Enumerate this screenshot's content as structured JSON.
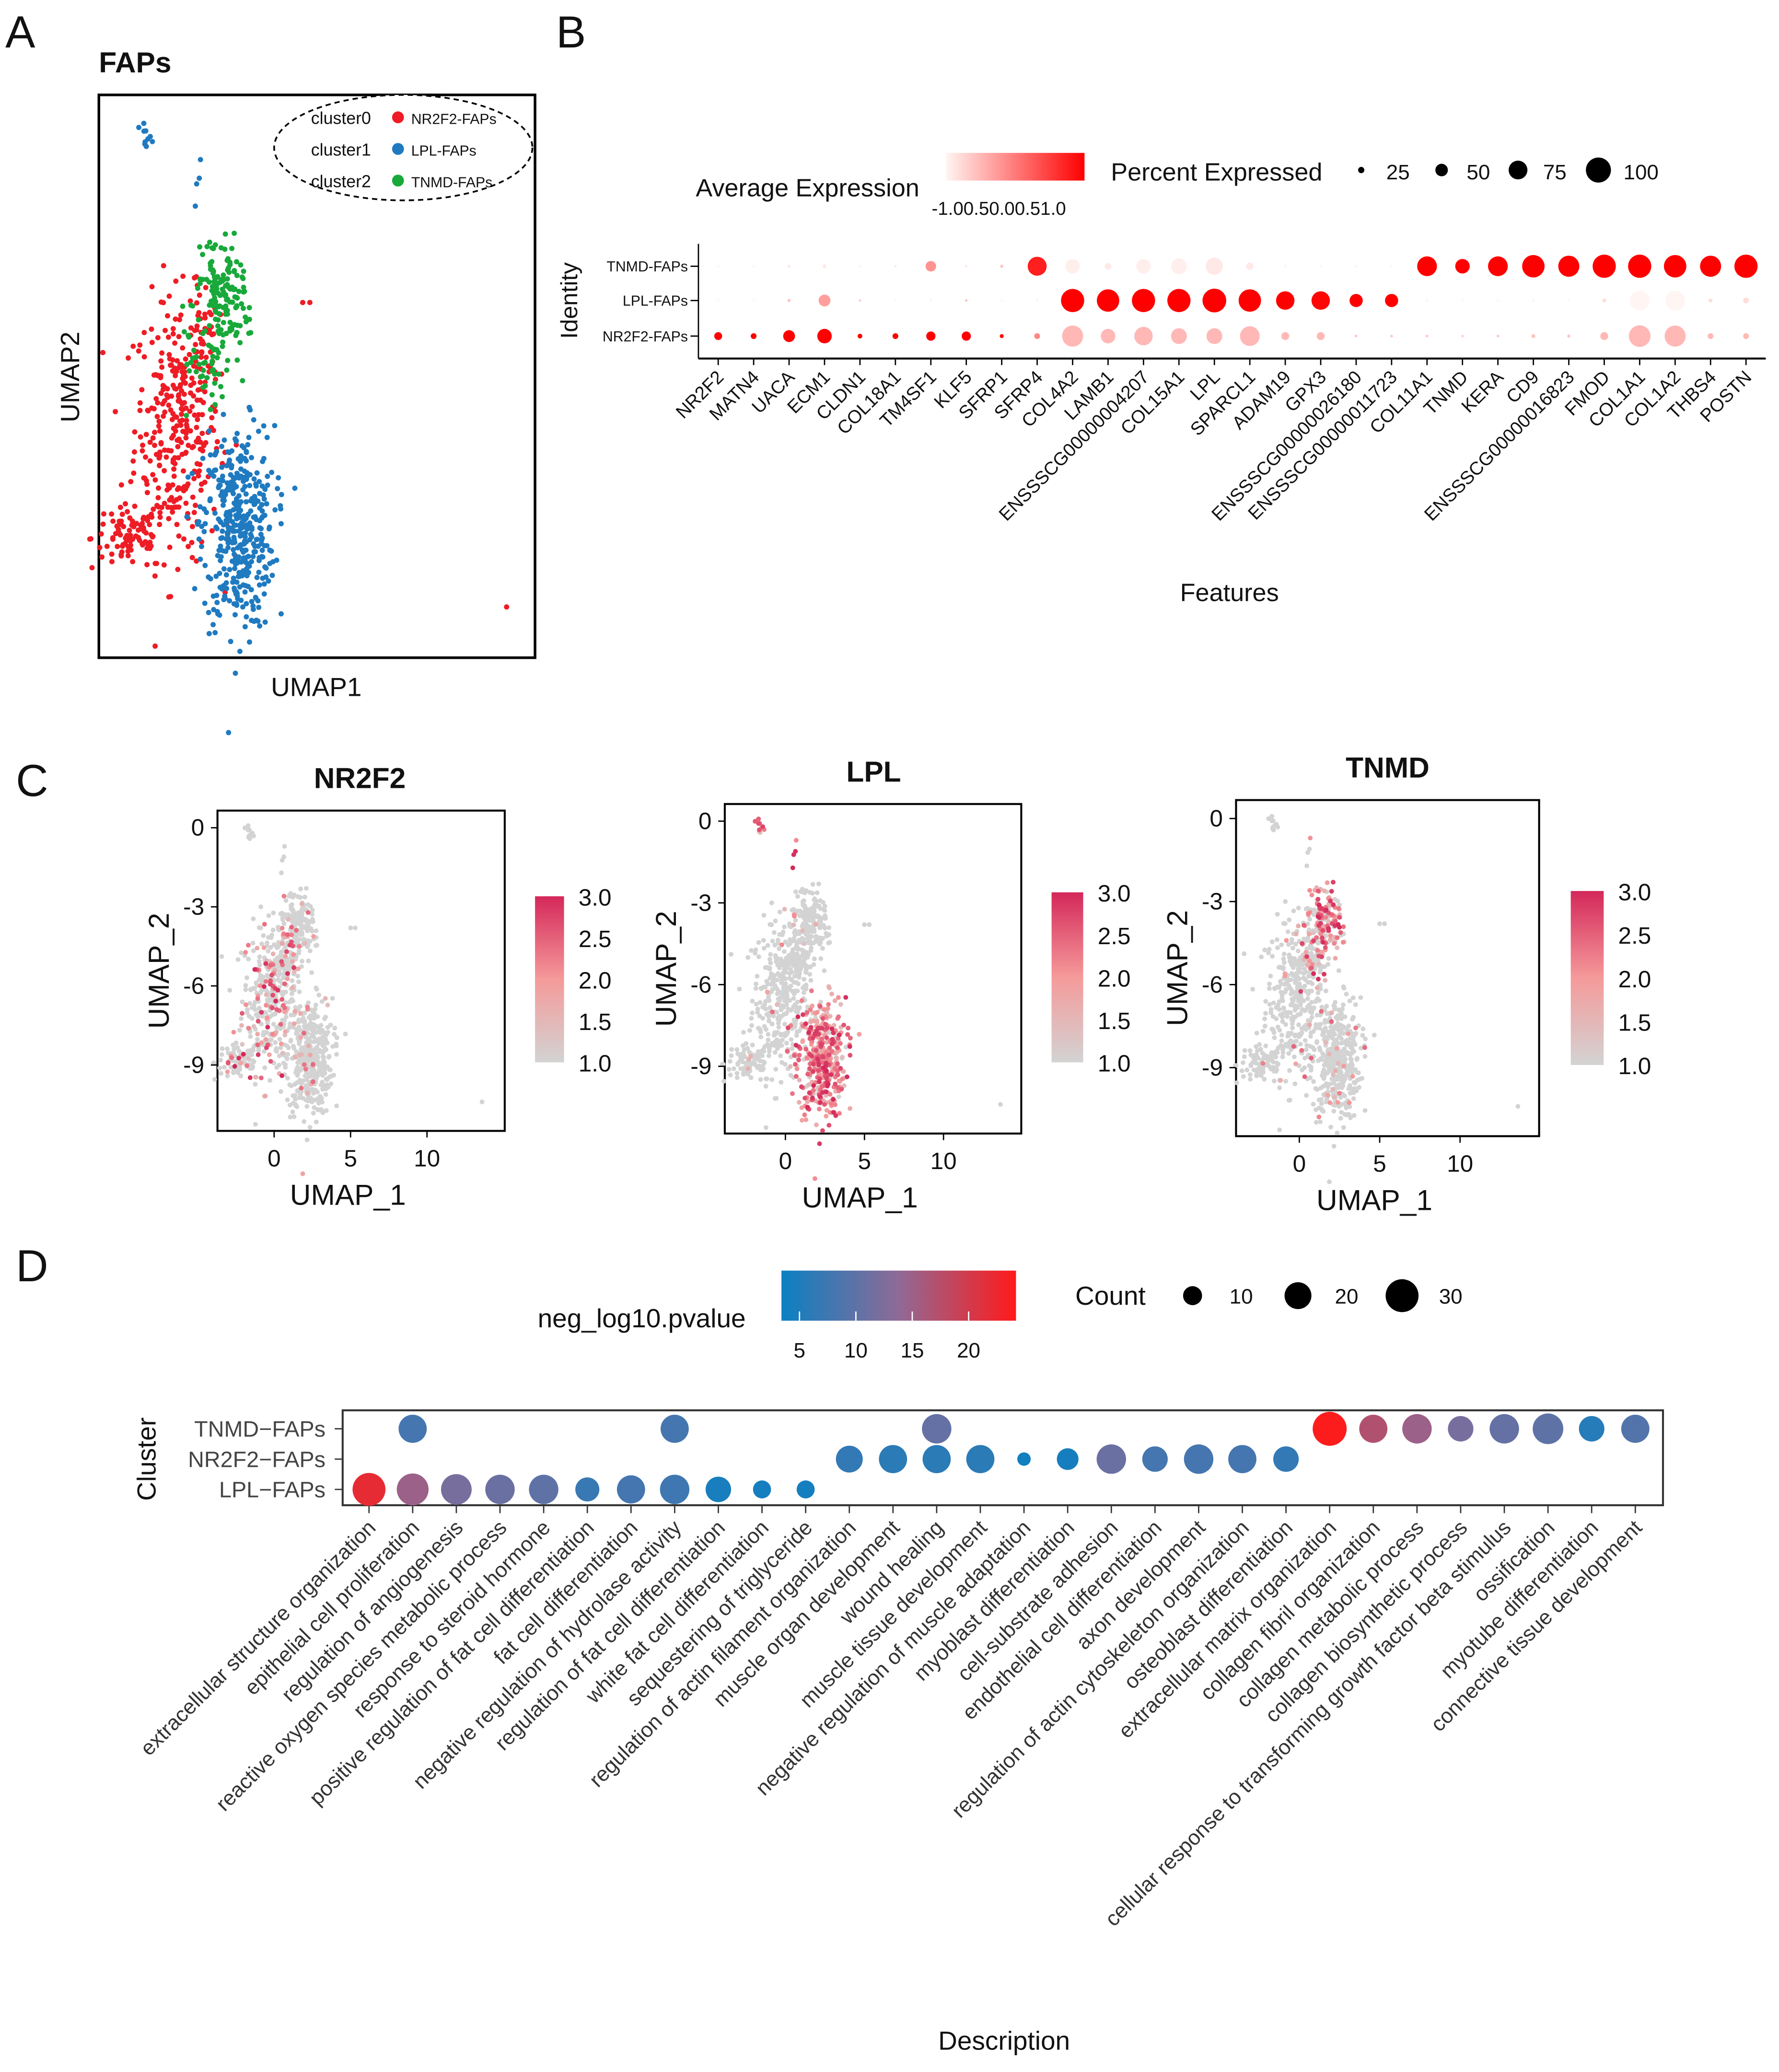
{
  "panel_letters": [
    "A",
    "B",
    "C",
    "D"
  ],
  "chart_data": [
    {
      "id": "A",
      "type": "scatter",
      "title": "FAPs",
      "xlabel": "UMAP1",
      "ylabel": "UMAP2",
      "xlim": [
        -3.6,
        14.8
      ],
      "ylim": [
        -11.5,
        0.7
      ],
      "legend": {
        "placement": "top-right",
        "entries": [
          {
            "key": "cluster0",
            "label": "NR2F2-FAPs",
            "color": "#ee1c25"
          },
          {
            "key": "cluster1",
            "label": "LPL-FAPs",
            "color": "#1f7ac0"
          },
          {
            "key": "cluster2",
            "label": "TNMD-FAPs",
            "color": "#18a93a"
          }
        ]
      },
      "clusters": [
        {
          "name": "NR2F2-FAPs",
          "color": "#ee1c25",
          "blobs": [
            {
              "cx": -0.3,
              "cy": -6.5,
              "sx": 0.9,
              "sy": 1.4,
              "n": 320
            },
            {
              "cx": -2.3,
              "cy": -8.9,
              "sx": 0.8,
              "sy": 0.35,
              "n": 90
            },
            {
              "cx": 0.8,
              "cy": -4.7,
              "sx": 0.35,
              "sy": 0.5,
              "n": 40
            }
          ],
          "outliers": [
            [
              13.6,
              -10.4
            ],
            [
              5.0,
              -3.8
            ],
            [
              5.3,
              -3.8
            ],
            [
              1.8,
              -8.6
            ]
          ]
        },
        {
          "name": "LPL-FAPs",
          "color": "#1f7ac0",
          "blobs": [
            {
              "cx": 2.3,
              "cy": -8.7,
              "sx": 0.75,
              "sy": 1.1,
              "n": 420
            },
            {
              "cx": -1.6,
              "cy": -0.3,
              "sx": 0.15,
              "sy": 0.2,
              "n": 10
            },
            {
              "cx": 0.6,
              "cy": -1.8,
              "sx": 0.1,
              "sy": 0.6,
              "n": 4
            }
          ],
          "outliers": []
        },
        {
          "name": "TNMD-FAPs",
          "color": "#18a93a",
          "blobs": [
            {
              "cx": 1.7,
              "cy": -3.7,
              "sx": 0.45,
              "sy": 0.55,
              "n": 150
            },
            {
              "cx": 0.8,
              "cy": -5.0,
              "sx": 0.3,
              "sy": 0.5,
              "n": 40
            }
          ],
          "outliers": []
        }
      ]
    },
    {
      "id": "B",
      "type": "dotplot",
      "xlabel": "Features",
      "ylabel": "Identity",
      "rows": [
        "TNMD-FAPs",
        "LPL-FAPs",
        "NR2F2-FAPs"
      ],
      "features": [
        "NR2F2",
        "MATN4",
        "UACA",
        "ECM1",
        "CLDN1",
        "COL18A1",
        "TM4SF1",
        "KLF5",
        "SFRP1",
        "SFRP4",
        "COL4A2",
        "LAMB1",
        "ENSSSCG00000004207",
        "COL15A1",
        "LPL",
        "SPARCL1",
        "ADAM19",
        "GPX3",
        "ENSSSCG00000026180",
        "ENSSSCG00000011723",
        "COL11A1",
        "TNMD",
        "KERA",
        "CD9",
        "ENSSSCG00000016823",
        "FMOD",
        "COL1A1",
        "COL1A2",
        "THBS4",
        "POSTN"
      ],
      "avg_expression": [
        [
          -1,
          -1,
          -0.9,
          -0.9,
          -1,
          -0.9,
          -0.2,
          -0.9,
          -0.6,
          0.75,
          -0.95,
          -0.9,
          -0.95,
          -0.95,
          -0.9,
          -0.9,
          -1,
          -1,
          -1,
          -1,
          1,
          1,
          1,
          1,
          1,
          1,
          1,
          1,
          1,
          1
        ],
        [
          -1,
          -1,
          -0.6,
          -0.3,
          -0.7,
          -1,
          -1,
          -0.6,
          -1,
          -1,
          1,
          1,
          1,
          1,
          1,
          1,
          1,
          0.95,
          1,
          1,
          -1,
          -1,
          -1,
          -1,
          -1,
          -0.8,
          -1,
          -1,
          -0.8,
          -0.8
        ],
        [
          1,
          1,
          1,
          1,
          1,
          1,
          1,
          1,
          1,
          -0.1,
          -0.5,
          -0.5,
          -0.5,
          -0.5,
          -0.5,
          -0.5,
          -0.5,
          -0.5,
          -0.6,
          -0.6,
          -0.6,
          -0.7,
          -0.6,
          -0.6,
          -0.6,
          -0.5,
          -0.5,
          -0.5,
          -0.5,
          -0.5
        ]
      ],
      "percent_expressed": [
        [
          5,
          5,
          12,
          15,
          4,
          8,
          40,
          8,
          12,
          72,
          55,
          25,
          55,
          60,
          65,
          28,
          5,
          5,
          5,
          5,
          75,
          55,
          75,
          85,
          80,
          88,
          88,
          85,
          80,
          88
        ],
        [
          4,
          4,
          12,
          45,
          8,
          6,
          5,
          10,
          4,
          5,
          88,
          85,
          88,
          88,
          90,
          85,
          70,
          70,
          50,
          50,
          4,
          4,
          4,
          4,
          4,
          15,
          75,
          75,
          15,
          22
        ],
        [
          30,
          22,
          45,
          55,
          18,
          22,
          35,
          35,
          15,
          22,
          80,
          55,
          70,
          60,
          60,
          75,
          30,
          30,
          8,
          8,
          10,
          6,
          6,
          15,
          12,
          30,
          82,
          80,
          22,
          22
        ]
      ],
      "color_legend": {
        "title": "Average Expression",
        "tick_label": "-1.00.50.00.51.0",
        "range": [
          -1,
          1
        ],
        "low": "#fff5f2",
        "high": "#ff0000"
      },
      "size_legend": {
        "title": "Percent Expressed",
        "values": [
          25,
          50,
          75,
          100
        ],
        "labels": [
          "25",
          "50",
          "75",
          "100"
        ]
      }
    },
    {
      "id": "C",
      "type": "feature-scatter",
      "plots": [
        {
          "title": "NR2F2",
          "high_cluster": "NR2F2-FAPs",
          "fraction_expressing": 0.22
        },
        {
          "title": "LPL",
          "high_cluster": "LPL-FAPs",
          "fraction_expressing": 0.85
        },
        {
          "title": "TNMD",
          "high_cluster": "TNMD-FAPs",
          "fraction_expressing": 0.6
        }
      ],
      "xlabel": "UMAP_1",
      "ylabel": "UMAP_2",
      "xticks": [
        0,
        5,
        10
      ],
      "xtick_labels": [
        "0",
        "5",
        "10"
      ],
      "yticks": [
        0,
        -3,
        -6,
        -9
      ],
      "ytick_labels": [
        "0",
        "-3",
        "-6",
        "-9"
      ],
      "colorbar": {
        "range": [
          1.0,
          3.0
        ],
        "ticks": [
          3.0,
          2.5,
          2.0,
          1.5,
          1.0
        ],
        "tick_labels": [
          "3.0",
          "2.5",
          "2.0",
          "1.5",
          "1.0"
        ],
        "low": "#d3d3d3",
        "mid": "#f59a9a",
        "high": "#d4285a"
      }
    },
    {
      "id": "D",
      "type": "dotplot",
      "xlabel": "Description",
      "ylabel": "Cluster",
      "rows": [
        "TNMD−FAPs",
        "NR2F2−FAPs",
        "LPL−FAPs"
      ],
      "terms": [
        "extracellular structure organization",
        "epithelial cell proliferation",
        "regulation of angiogenesis",
        "reactive oxygen species metabolic process",
        "response to steroid hormone",
        "positive regulation of fat cell differentiation",
        "fat cell differentiation",
        "negative regulation of hydrolase activity",
        "regulation of fat cell differentiation",
        "white fat cell differentiation",
        "sequestering of triglyceride",
        "regulation of actin filament organization",
        "muscle organ development",
        "wound healing",
        "muscle tissue development",
        "negative regulation of muscle adaptation",
        "myoblast differentiation",
        "cell-substrate adhesion",
        "endothelial cell differentiation",
        "axon development",
        "regulation of actin cytoskeleton organization",
        "osteoblast differentiation",
        "extracellular matrix organization",
        "collagen fibril organization",
        "collagen metabolic process",
        "collagen biosynthetic process",
        "cellular response to transforming growth factor beta stimulus",
        "ossification",
        "myotube differentiation",
        "connective tissue development"
      ],
      "points": [
        {
          "row": 2,
          "term": 0,
          "count": 30,
          "neg_log10_pvalue": 22
        },
        {
          "row": 2,
          "term": 1,
          "count": 28,
          "neg_log10_pvalue": 15
        },
        {
          "row": 2,
          "term": 2,
          "count": 26,
          "neg_log10_pvalue": 12
        },
        {
          "row": 2,
          "term": 3,
          "count": 24,
          "neg_log10_pvalue": 11
        },
        {
          "row": 2,
          "term": 4,
          "count": 24,
          "neg_log10_pvalue": 10
        },
        {
          "row": 2,
          "term": 5,
          "count": 16,
          "neg_log10_pvalue": 7
        },
        {
          "row": 2,
          "term": 6,
          "count": 22,
          "neg_log10_pvalue": 8
        },
        {
          "row": 2,
          "term": 7,
          "count": 24,
          "neg_log10_pvalue": 7.5
        },
        {
          "row": 2,
          "term": 8,
          "count": 18,
          "neg_log10_pvalue": 4.5
        },
        {
          "row": 2,
          "term": 9,
          "count": 9,
          "neg_log10_pvalue": 4.2
        },
        {
          "row": 2,
          "term": 10,
          "count": 9,
          "neg_log10_pvalue": 4.2
        },
        {
          "row": 0,
          "term": 1,
          "count": 22,
          "neg_log10_pvalue": 8
        },
        {
          "row": 0,
          "term": 7,
          "count": 22,
          "neg_log10_pvalue": 8
        },
        {
          "row": 0,
          "term": 13,
          "count": 24,
          "neg_log10_pvalue": 10.5
        },
        {
          "row": 1,
          "term": 11,
          "count": 20,
          "neg_log10_pvalue": 6.5
        },
        {
          "row": 1,
          "term": 12,
          "count": 22,
          "neg_log10_pvalue": 6
        },
        {
          "row": 1,
          "term": 13,
          "count": 22,
          "neg_log10_pvalue": 6
        },
        {
          "row": 1,
          "term": 14,
          "count": 22,
          "neg_log10_pvalue": 6
        },
        {
          "row": 1,
          "term": 15,
          "count": 5,
          "neg_log10_pvalue": 4
        },
        {
          "row": 1,
          "term": 16,
          "count": 13,
          "neg_log10_pvalue": 4.3
        },
        {
          "row": 1,
          "term": 17,
          "count": 24,
          "neg_log10_pvalue": 11
        },
        {
          "row": 1,
          "term": 18,
          "count": 18,
          "neg_log10_pvalue": 8
        },
        {
          "row": 1,
          "term": 19,
          "count": 24,
          "neg_log10_pvalue": 8
        },
        {
          "row": 1,
          "term": 20,
          "count": 22,
          "neg_log10_pvalue": 8
        },
        {
          "row": 1,
          "term": 21,
          "count": 18,
          "neg_log10_pvalue": 6.5
        },
        {
          "row": 0,
          "term": 22,
          "count": 32,
          "neg_log10_pvalue": 24
        },
        {
          "row": 0,
          "term": 23,
          "count": 22,
          "neg_log10_pvalue": 17
        },
        {
          "row": 0,
          "term": 24,
          "count": 24,
          "neg_log10_pvalue": 15
        },
        {
          "row": 0,
          "term": 25,
          "count": 18,
          "neg_log10_pvalue": 12
        },
        {
          "row": 0,
          "term": 26,
          "count": 24,
          "neg_log10_pvalue": 10.5
        },
        {
          "row": 0,
          "term": 27,
          "count": 26,
          "neg_log10_pvalue": 10
        },
        {
          "row": 0,
          "term": 28,
          "count": 18,
          "neg_log10_pvalue": 5.5
        },
        {
          "row": 0,
          "term": 29,
          "count": 22,
          "neg_log10_pvalue": 9
        }
      ],
      "color_legend": {
        "title": "neg_log10.pvalue",
        "ticks": [
          5,
          10,
          15,
          20
        ],
        "tick_labels": [
          "5",
          "10",
          "15",
          "20"
        ],
        "range": [
          3.4,
          24.2
        ],
        "low": "#0a80c2",
        "mid": "#8f6a96",
        "high": "#ff1a1a"
      },
      "size_legend": {
        "title": "Count",
        "values": [
          10,
          20,
          30
        ],
        "labels": [
          "10",
          "20",
          "30"
        ]
      }
    }
  ]
}
